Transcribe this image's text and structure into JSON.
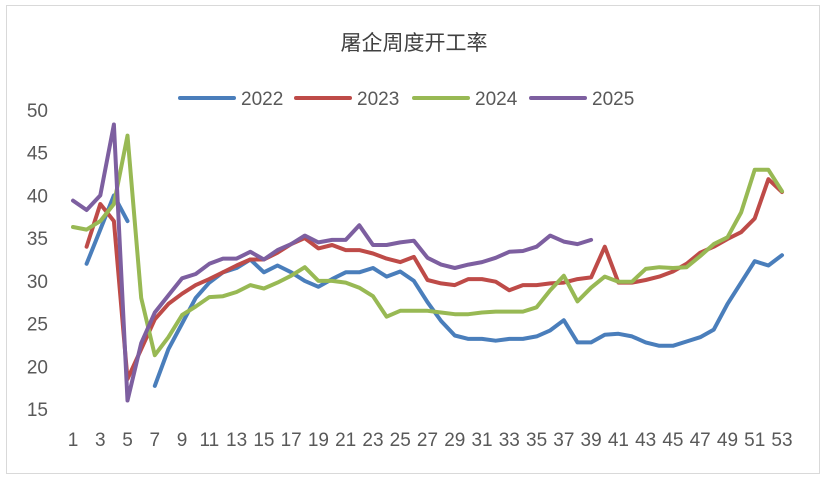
{
  "chart_data": {
    "type": "line",
    "title": "屠企周度开工率",
    "xlabel": "",
    "ylabel": "",
    "ylim": [
      15,
      50
    ],
    "yticks": [
      15,
      20,
      25,
      30,
      35,
      40,
      45,
      50
    ],
    "x": [
      1,
      2,
      3,
      4,
      5,
      6,
      7,
      8,
      9,
      10,
      11,
      12,
      13,
      14,
      15,
      16,
      17,
      18,
      19,
      20,
      21,
      22,
      23,
      24,
      25,
      26,
      27,
      28,
      29,
      30,
      31,
      32,
      33,
      34,
      35,
      36,
      37,
      38,
      39,
      40,
      41,
      42,
      43,
      44,
      45,
      46,
      47,
      48,
      49,
      50,
      51,
      52,
      53
    ],
    "xticks": [
      1,
      3,
      5,
      7,
      9,
      11,
      13,
      15,
      17,
      19,
      21,
      23,
      25,
      27,
      29,
      31,
      33,
      35,
      37,
      39,
      41,
      43,
      45,
      47,
      49,
      51,
      53
    ],
    "grid": false,
    "legend": "top",
    "series": [
      {
        "name": "2022",
        "color": "#4a7ebb",
        "values": [
          null,
          32,
          36,
          40,
          37,
          null,
          17.7,
          22,
          25,
          28,
          29.8,
          31,
          31.5,
          32.5,
          31,
          31.8,
          31,
          30,
          29.3,
          30.2,
          31,
          31,
          31.5,
          30.5,
          31.1,
          30,
          27.5,
          25.3,
          23.6,
          23.2,
          23.2,
          23,
          23.2,
          23.2,
          23.5,
          24.2,
          25.4,
          22.8,
          22.8,
          23.7,
          23.8,
          23.5,
          22.8,
          22.4,
          22.4,
          22.9,
          23.4,
          24.3,
          27.3,
          29.8,
          32.3,
          31.8,
          33
        ]
      },
      {
        "name": "2023",
        "color": "#be4b48",
        "values": [
          null,
          34,
          39,
          37,
          18.5,
          22,
          25.5,
          27.3,
          28.5,
          29.5,
          30.2,
          31,
          31.8,
          32.5,
          32.5,
          33.3,
          34.3,
          35,
          33.8,
          34.2,
          33.6,
          33.6,
          33.2,
          32.6,
          32.2,
          32.8,
          30.1,
          29.7,
          29.5,
          30.2,
          30.2,
          29.9,
          28.9,
          29.5,
          29.5,
          29.7,
          29.8,
          30.2,
          30.4,
          34,
          29.8,
          29.8,
          30.1,
          30.5,
          31.1,
          32,
          33.3,
          34,
          34.9,
          35.7,
          37.3,
          41.9,
          40.4
        ]
      },
      {
        "name": "2024",
        "color": "#98b954",
        "values": [
          36.3,
          36,
          37,
          39,
          47,
          28,
          21.3,
          23.4,
          26,
          27,
          28.1,
          28.2,
          28.7,
          29.5,
          29.1,
          29.8,
          30.6,
          31.6,
          30,
          30,
          29.8,
          29.2,
          28.2,
          25.8,
          26.5,
          26.5,
          26.5,
          26.3,
          26.1,
          26.1,
          26.3,
          26.4,
          26.4,
          26.4,
          26.9,
          28.9,
          30.6,
          27.6,
          29.2,
          30.5,
          29.9,
          29.9,
          31.4,
          31.6,
          31.5,
          31.6,
          32.9,
          34.3,
          35.1,
          38,
          43,
          43,
          40.5
        ]
      },
      {
        "name": "2025",
        "color": "#7d5fa0",
        "values": [
          39.4,
          38.3,
          40,
          48.3,
          16,
          22.7,
          26.3,
          28.3,
          30.3,
          30.8,
          32,
          32.6,
          32.6,
          33.4,
          32.5,
          33.6,
          34.3,
          35.3,
          34.5,
          34.8,
          34.8,
          36.5,
          34.2,
          34.2,
          34.5,
          34.7,
          32.7,
          31.9,
          31.5,
          31.9,
          32.2,
          32.7,
          33.4,
          33.5,
          34,
          35.3,
          34.6,
          34.3,
          34.8,
          null,
          null,
          null,
          null,
          null,
          null,
          null,
          null,
          null,
          null,
          null,
          null,
          null,
          null
        ]
      }
    ]
  }
}
